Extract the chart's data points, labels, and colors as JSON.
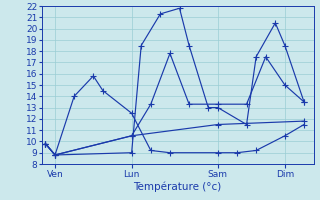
{
  "background_color": "#cce8ec",
  "grid_color": "#9bcdd4",
  "line_color": "#1a3aab",
  "marker_color": "#1a3aab",
  "ylim": [
    8,
    22
  ],
  "yticks": [
    8,
    9,
    10,
    11,
    12,
    13,
    14,
    15,
    16,
    17,
    18,
    19,
    20,
    21,
    22
  ],
  "xlabel": "Température (°c)",
  "xlabel_color": "#1a3aab",
  "xtick_labels": [
    "Ven",
    "Lun",
    "Sam",
    "Dim"
  ],
  "xtick_positions": [
    0.5,
    4.5,
    9.0,
    12.5
  ],
  "series": [
    {
      "x": [
        0,
        0.5,
        1.5,
        2.5,
        3.0,
        4.5,
        5.5,
        6.5,
        9.0,
        10.0,
        11.0,
        12.5,
        13.5
      ],
      "y": [
        9.8,
        8.8,
        14.0,
        15.8,
        14.5,
        12.5,
        9.2,
        9.0,
        9.0,
        9.0,
        9.2,
        10.5,
        11.5
      ]
    },
    {
      "x": [
        0,
        0.5,
        4.5,
        5.0,
        6.0,
        7.0,
        7.5,
        8.5,
        9.0,
        10.5,
        11.0,
        12.0,
        12.5,
        13.5
      ],
      "y": [
        9.8,
        8.8,
        9.0,
        18.5,
        21.3,
        21.8,
        18.5,
        13.0,
        13.0,
        11.5,
        17.5,
        20.5,
        18.5,
        13.5
      ]
    },
    {
      "x": [
        0,
        0.5,
        4.5,
        5.5,
        6.5,
        7.5,
        9.0,
        10.5,
        11.5,
        12.5,
        13.5
      ],
      "y": [
        9.8,
        8.8,
        10.5,
        13.3,
        17.8,
        13.3,
        13.3,
        13.3,
        17.5,
        15.0,
        13.5
      ]
    },
    {
      "x": [
        0,
        0.5,
        4.5,
        9.0,
        13.5
      ],
      "y": [
        9.8,
        8.8,
        10.5,
        11.5,
        11.8
      ]
    }
  ],
  "xmin": -0.2,
  "xmax": 14.0,
  "tick_color": "#1a3aab",
  "axis_color": "#1a3aab",
  "fontsize_ticks": 6.5,
  "fontsize_xlabel": 7.5,
  "linewidth": 0.85,
  "markersize": 2.2
}
